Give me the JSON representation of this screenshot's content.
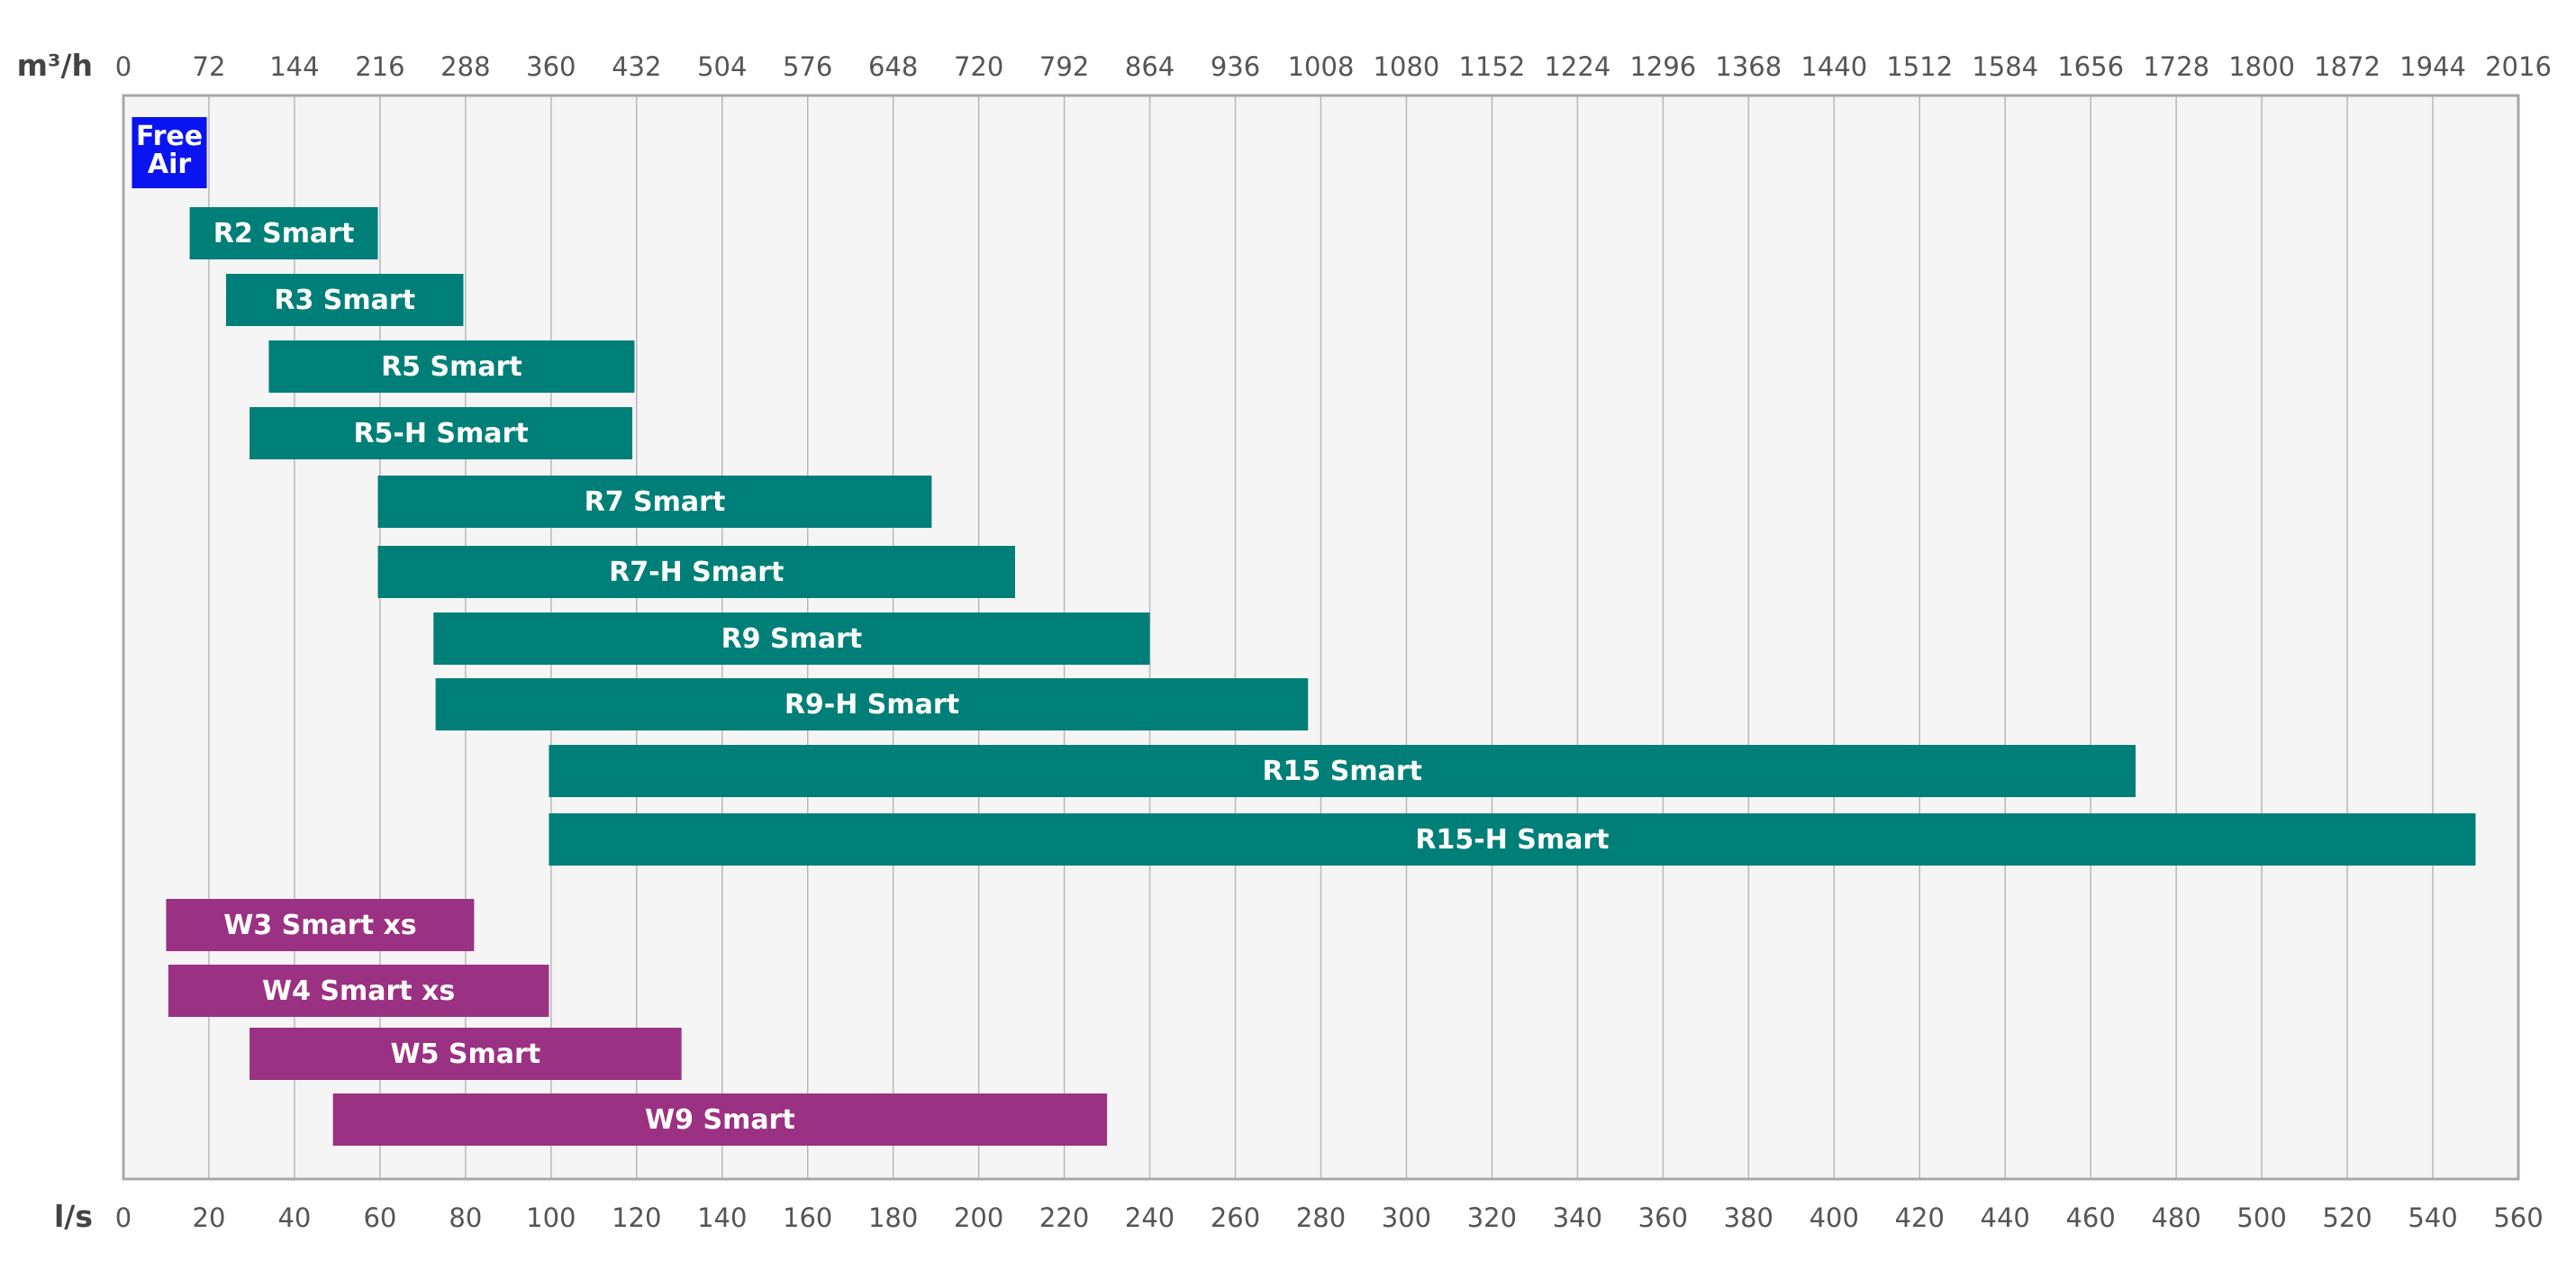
{
  "chart_data": {
    "type": "bar",
    "orientation": "horizontal-range",
    "top_axis": {
      "unit": "m³/h",
      "ticks": [
        "0",
        "72",
        "144",
        "216",
        "288",
        "360",
        "432",
        "504",
        "576",
        "648",
        "720",
        "792",
        "864",
        "936",
        "1008",
        "1080",
        "1152",
        "1224",
        "1296",
        "1368",
        "1440",
        "1512",
        "1584",
        "1656",
        "1728",
        "1800",
        "1872",
        "1944",
        "2016"
      ]
    },
    "bottom_axis": {
      "unit": "l/s",
      "ticks": [
        "0",
        "20",
        "40",
        "60",
        "80",
        "100",
        "120",
        "140",
        "160",
        "180",
        "200",
        "220",
        "240",
        "260",
        "280",
        "300",
        "320",
        "340",
        "360",
        "380",
        "400",
        "420",
        "440",
        "460",
        "480",
        "500",
        "520",
        "540",
        "560"
      ]
    },
    "xlim": [
      0,
      560
    ],
    "grid": true,
    "colors": {
      "free_air": "#0a14f0",
      "r_series": "#007f78",
      "w_series": "#9b3183",
      "plot_bg": "#f5f5f5",
      "grid": "#b8b8b8",
      "frame": "#a8a8a8"
    },
    "bars": [
      {
        "label": "Free Air",
        "start": 2,
        "end": 19.5,
        "group": "free_air"
      },
      {
        "label": "R2 Smart",
        "start": 15.5,
        "end": 59.5,
        "group": "r_series"
      },
      {
        "label": "R3 Smart",
        "start": 24,
        "end": 79.5,
        "group": "r_series"
      },
      {
        "label": "R5 Smart",
        "start": 34,
        "end": 119.5,
        "group": "r_series"
      },
      {
        "label": "R5-H Smart",
        "start": 29.5,
        "end": 119,
        "group": "r_series"
      },
      {
        "label": "R7 Smart",
        "start": 59.5,
        "end": 189,
        "group": "r_series"
      },
      {
        "label": "R7-H Smart",
        "start": 59.5,
        "end": 208.5,
        "group": "r_series"
      },
      {
        "label": "R9 Smart",
        "start": 72.5,
        "end": 240,
        "group": "r_series"
      },
      {
        "label": "R9-H Smart",
        "start": 73,
        "end": 277,
        "group": "r_series"
      },
      {
        "label": "R15 Smart",
        "start": 99.5,
        "end": 470.5,
        "group": "r_series"
      },
      {
        "label": "R15-H Smart",
        "start": 99.5,
        "end": 550,
        "group": "r_series"
      },
      {
        "label": "W3 Smart xs",
        "start": 10,
        "end": 82,
        "group": "w_series"
      },
      {
        "label": "W4 Smart xs",
        "start": 10.5,
        "end": 99.5,
        "group": "w_series"
      },
      {
        "label": "W5 Smart",
        "start": 29.5,
        "end": 130.5,
        "group": "w_series"
      },
      {
        "label": "W9 Smart",
        "start": 49,
        "end": 230,
        "group": "w_series"
      }
    ]
  }
}
